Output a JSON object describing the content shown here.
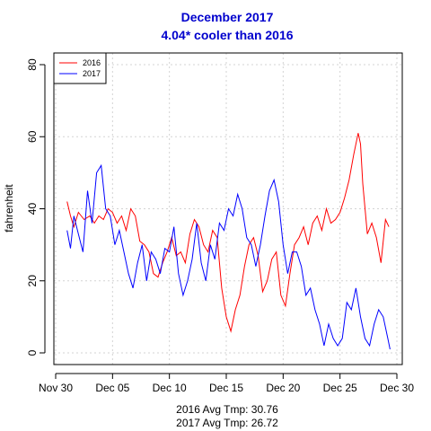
{
  "chart_data": {
    "type": "line",
    "title": "December 2017",
    "subtitle": "4.04* cooler than 2016",
    "xlabel": "",
    "ylabel": "fahrenheit",
    "ylim": [
      0,
      80
    ],
    "y_ticks": [
      0,
      20,
      40,
      60,
      80
    ],
    "xlim_days": [
      0,
      30
    ],
    "x_ticks": [
      {
        "day": 0,
        "label": "Nov 30"
      },
      {
        "day": 5,
        "label": "Dec 05"
      },
      {
        "day": 10,
        "label": "Dec 10"
      },
      {
        "day": 15,
        "label": "Dec 15"
      },
      {
        "day": 20,
        "label": "Dec 20"
      },
      {
        "day": 25,
        "label": "Dec 25"
      },
      {
        "day": 30,
        "label": "Dec 30"
      }
    ],
    "grid": true,
    "legend_position": "top-left",
    "series": [
      {
        "name": "2016",
        "color": "#FF0000",
        "x": [
          1.0,
          1.3,
          1.6,
          2.0,
          2.5,
          3.0,
          3.4,
          3.8,
          4.2,
          4.6,
          5.0,
          5.4,
          5.8,
          6.2,
          6.6,
          7.0,
          7.4,
          7.8,
          8.2,
          8.6,
          9.0,
          9.4,
          9.8,
          10.2,
          10.6,
          11.0,
          11.4,
          11.8,
          12.2,
          12.6,
          13.0,
          13.4,
          13.8,
          14.2,
          14.6,
          15.0,
          15.4,
          15.8,
          16.2,
          16.6,
          17.0,
          17.4,
          17.8,
          18.2,
          18.6,
          19.0,
          19.4,
          19.8,
          20.2,
          20.6,
          21.0,
          21.4,
          21.8,
          22.2,
          22.6,
          23.0,
          23.4,
          23.8,
          24.2,
          24.6,
          25.0,
          25.4,
          25.8,
          26.2,
          26.6,
          26.8,
          27.0,
          27.4,
          27.8,
          28.2,
          28.6,
          29.0,
          29.3
        ],
        "y": [
          42,
          38,
          35,
          39,
          37,
          38,
          36,
          38,
          37,
          40,
          39,
          36,
          38,
          34,
          40,
          38,
          31,
          30,
          28,
          22,
          21,
          25,
          28,
          32,
          27,
          28,
          25,
          33,
          37,
          35,
          30,
          28,
          34,
          32,
          18,
          10,
          6,
          12,
          16,
          24,
          30,
          32,
          27,
          17,
          20,
          26,
          28,
          16,
          13,
          22,
          30,
          32,
          35,
          30,
          36,
          38,
          34,
          40,
          36,
          37,
          39,
          43,
          48,
          55,
          61,
          58,
          47,
          33,
          36,
          32,
          25,
          37,
          35
        ]
      },
      {
        "name": "2017",
        "color": "#0000FF",
        "x": [
          1.0,
          1.3,
          1.6,
          2.0,
          2.4,
          2.8,
          3.2,
          3.6,
          4.0,
          4.4,
          4.8,
          5.2,
          5.6,
          6.0,
          6.4,
          6.8,
          7.2,
          7.6,
          8.0,
          8.4,
          8.8,
          9.2,
          9.6,
          10.0,
          10.4,
          10.8,
          11.2,
          11.6,
          12.0,
          12.4,
          12.8,
          13.2,
          13.6,
          14.0,
          14.4,
          14.8,
          15.2,
          15.6,
          16.0,
          16.4,
          16.8,
          17.2,
          17.6,
          18.0,
          18.4,
          18.8,
          19.2,
          19.6,
          20.0,
          20.4,
          20.8,
          21.2,
          21.6,
          22.0,
          22.4,
          22.8,
          23.2,
          23.6,
          24.0,
          24.4,
          24.8,
          25.2,
          25.6,
          26.0,
          26.4,
          26.8,
          27.2,
          27.6,
          28.0,
          28.4,
          28.8,
          29.2,
          29.4
        ],
        "y": [
          34,
          29,
          38,
          33,
          28,
          45,
          36,
          50,
          52,
          40,
          38,
          30,
          34,
          28,
          22,
          18,
          25,
          30,
          20,
          28,
          26,
          22,
          29,
          28,
          35,
          22,
          16,
          20,
          26,
          36,
          25,
          20,
          30,
          26,
          36,
          34,
          40,
          38,
          44,
          40,
          32,
          30,
          24,
          30,
          38,
          45,
          48,
          42,
          30,
          22,
          28,
          28,
          24,
          16,
          18,
          12,
          8,
          2,
          8,
          4,
          2,
          4,
          14,
          12,
          18,
          10,
          4,
          2,
          8,
          12,
          10,
          4,
          1
        ]
      }
    ],
    "annotations": [
      "2016 Avg Tmp: 30.76",
      "2017 Avg Tmp: 26.72"
    ]
  }
}
